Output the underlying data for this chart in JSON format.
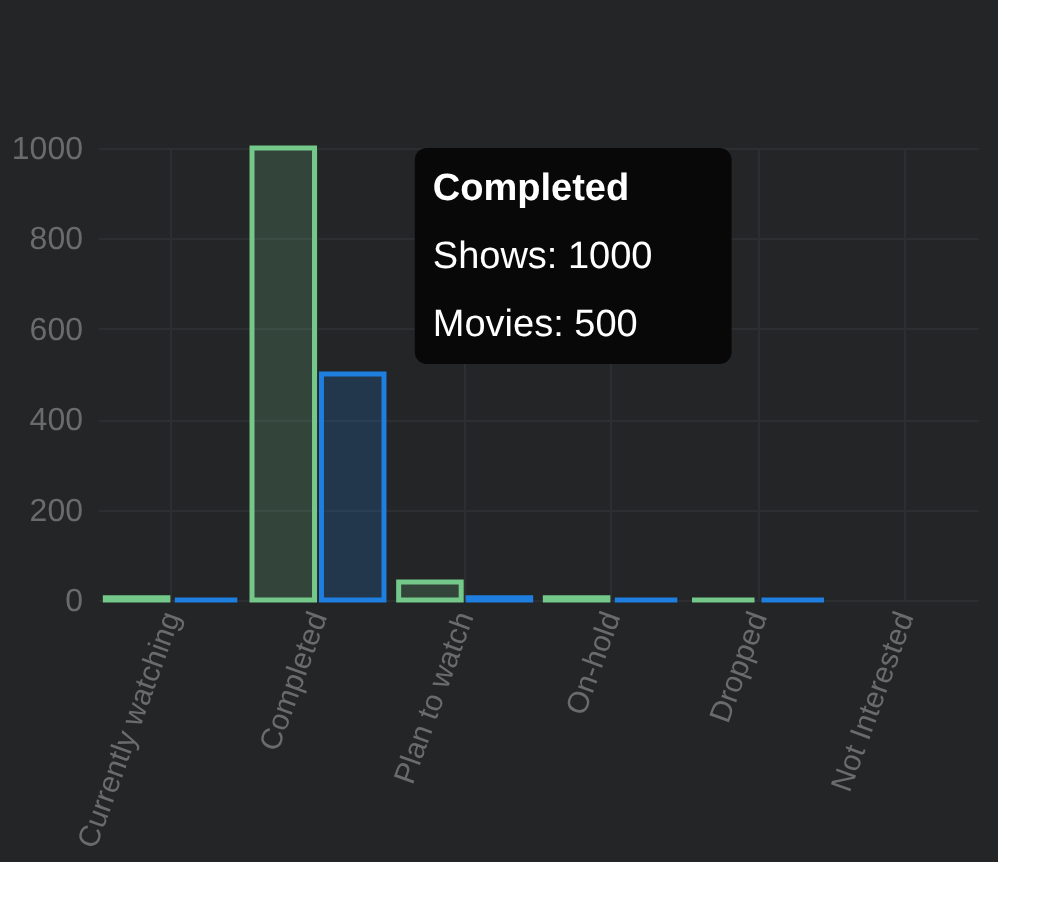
{
  "chart_data": {
    "type": "bar",
    "categories": [
      "Currently watching",
      "Completed",
      "Plan to watch",
      "On-hold",
      "Dropped",
      "Not Interested"
    ],
    "series": [
      {
        "color": "#74c98a",
        "values": [
          5,
          1000,
          40,
          5,
          0,
          null
        ]
      },
      {
        "color": "#1f7fe0",
        "values": [
          0,
          500,
          5,
          0,
          0,
          null
        ]
      }
    ],
    "ylim": [
      0,
      1000
    ],
    "yticks": [
      0,
      200,
      400,
      600,
      800,
      {
        "value": 1000,
        "label": "1000"
      }
    ],
    "grid": true,
    "annotations": [
      "Completed",
      "Shows: 1000",
      "Movies: 500"
    ]
  }
}
